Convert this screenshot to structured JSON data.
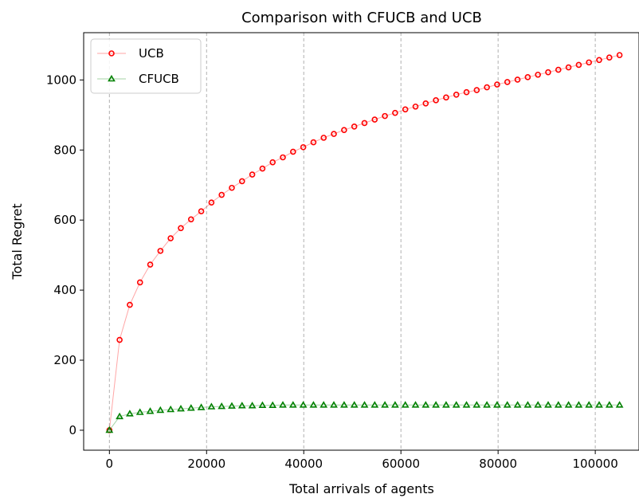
{
  "chart_data": {
    "type": "line",
    "title": "Comparison with CFUCB and UCB",
    "xlabel": "Total arrivals of agents",
    "ylabel": "Total Regret",
    "xlim": [
      -5300,
      109000
    ],
    "ylim": [
      -57,
      1135
    ],
    "xticks": [
      0,
      20000,
      40000,
      60000,
      80000,
      100000
    ],
    "xtick_labels": [
      "0",
      "20000",
      "40000",
      "60000",
      "80000",
      "100000"
    ],
    "yticks": [
      0,
      200,
      400,
      600,
      800,
      1000
    ],
    "ytick_labels": [
      "0",
      "200",
      "400",
      "600",
      "800",
      "1000"
    ],
    "grid": "x-dashed",
    "legend_position": "top-left",
    "x": [
      0,
      2100,
      4200,
      6300,
      8400,
      10500,
      12600,
      14700,
      16800,
      18900,
      21000,
      23100,
      25200,
      27300,
      29400,
      31500,
      33600,
      35700,
      37800,
      39900,
      42000,
      44100,
      46200,
      48300,
      50400,
      52500,
      54600,
      56700,
      58800,
      60900,
      63000,
      65100,
      67200,
      69300,
      71400,
      73500,
      75600,
      77700,
      79800,
      81900,
      84000,
      86100,
      88200,
      90300,
      92400,
      94500,
      96600,
      98700,
      100800,
      102900,
      105000
    ],
    "series": [
      {
        "name": "UCB",
        "color": "#ff0000",
        "marker": "circle",
        "values": [
          0,
          258,
          358,
          422,
          473,
          512,
          548,
          577,
          602,
          625,
          650,
          672,
          692,
          711,
          730,
          747,
          765,
          779,
          795,
          808,
          822,
          835,
          846,
          857,
          867,
          877,
          887,
          897,
          906,
          916,
          924,
          933,
          942,
          950,
          958,
          965,
          971,
          979,
          987,
          994,
          1001,
          1008,
          1015,
          1022,
          1029,
          1036,
          1043,
          1050,
          1057,
          1064,
          1071
        ]
      },
      {
        "name": "CFUCB",
        "color": "#008000",
        "marker": "triangle",
        "values": [
          0,
          39,
          47,
          51,
          54,
          57,
          59,
          61,
          63,
          65,
          67,
          68,
          69,
          70,
          70,
          71,
          71,
          72,
          72,
          72,
          72,
          72,
          72,
          72,
          72,
          72,
          72,
          72,
          72,
          72,
          72,
          72,
          72,
          72,
          72,
          72,
          72,
          72,
          72,
          72,
          72,
          72,
          72,
          72,
          72,
          72,
          72,
          72,
          72,
          72,
          72
        ]
      }
    ]
  }
}
